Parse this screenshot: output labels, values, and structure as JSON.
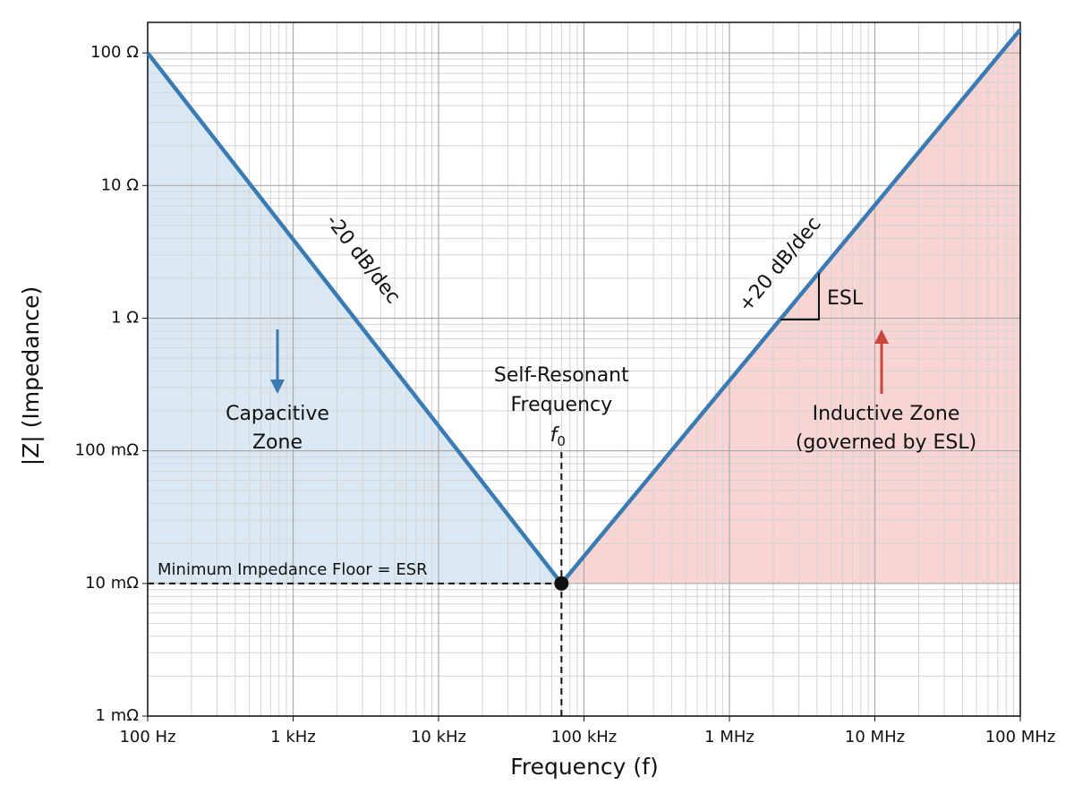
{
  "chart_data": {
    "type": "line",
    "log_x": true,
    "log_y": true,
    "grid": true,
    "minor_grid": true,
    "xlabel": "Frequency (f)",
    "ylabel": "|Z| (Impedance)",
    "xlim": [
      100,
      100000000
    ],
    "ylim": [
      0.001,
      170
    ],
    "xticks": [
      {
        "value": 100,
        "label": "100 Hz"
      },
      {
        "value": 1000,
        "label": "1 kHz"
      },
      {
        "value": 10000,
        "label": "10 kHz"
      },
      {
        "value": 100000,
        "label": "100 kHz"
      },
      {
        "value": 1000000,
        "label": "1 MHz"
      },
      {
        "value": 10000000,
        "label": "10 MHz"
      },
      {
        "value": 100000000,
        "label": "100 MHz"
      }
    ],
    "yticks": [
      {
        "value": 0.001,
        "label": "1 mΩ"
      },
      {
        "value": 0.01,
        "label": "10 mΩ"
      },
      {
        "value": 0.1,
        "label": "100 mΩ"
      },
      {
        "value": 1,
        "label": "1 Ω"
      },
      {
        "value": 10,
        "label": "10 Ω"
      },
      {
        "value": 100,
        "label": "100 Ω"
      }
    ],
    "series": [
      {
        "color": "#3b7bb4",
        "x": [
          100,
          70000,
          100000000
        ],
        "values": [
          100,
          0.01,
          150
        ]
      }
    ],
    "zone_colors": [
      "#d9e8f2",
      "#f8d4d2"
    ],
    "esr": 0.01,
    "f0": 70000,
    "annotations": {
      "left_slope": "-20 dB/dec",
      "right_slope": "+20 dB/dec",
      "esl": "ESL",
      "capacitive": [
        "Capacitive",
        "Zone"
      ],
      "inductive": [
        "Inductive Zone",
        "(governed by ESL)"
      ],
      "srf": [
        "Self-Resonant",
        "Frequency"
      ],
      "f0_symbol": "f",
      "f0_subscript": "0",
      "floor": "Minimum Impedance Floor = ESR"
    }
  }
}
